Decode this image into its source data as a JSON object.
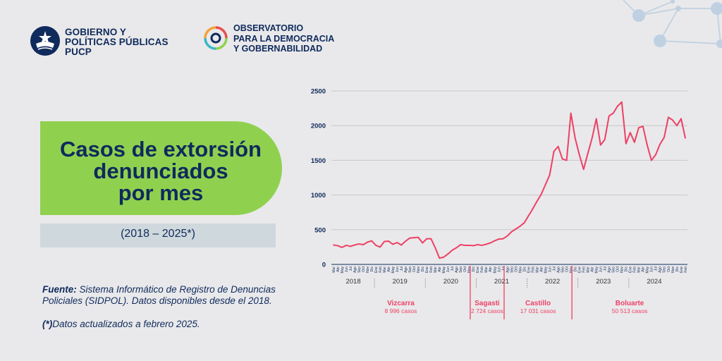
{
  "header": {
    "org1_lines": [
      "GOBIERNO Y",
      "POLÍTICAS PÚBLICAS",
      "PUCP"
    ],
    "org2_lines": [
      "OBSERVATORIO",
      "PARA LA DEMOCRACIA",
      "Y GOBERNABILIDAD"
    ]
  },
  "title": {
    "lines": [
      "Casos de extorsión",
      "denunciados",
      "por mes"
    ],
    "period": "(2018 – 2025*)"
  },
  "footer": {
    "source_label": "Fuente:",
    "source_text": "Sistema Informático de Registro de Denuncias Policiales  (SIDPOL). Datos disponibles desde el 2018.",
    "note_label": "(*)",
    "note_text": "Datos actualizados a febrero 2025."
  },
  "colors": {
    "navy": "#0f2a5c",
    "green": "#8fd14f",
    "line": "#ee4064",
    "period_box": "#cfd8dc"
  },
  "chart_data": {
    "type": "line",
    "title": "Casos de extorsión denunciados por mes",
    "xlabel": "",
    "ylabel": "",
    "ylim": [
      0,
      2500
    ],
    "yticks": [
      "0",
      "500",
      "1000",
      "1500",
      "2000",
      "2500"
    ],
    "month_labels": [
      "Mar",
      "Abr",
      "May",
      "Jun",
      "Jul",
      "Ago",
      "Sep",
      "Oct",
      "Nov",
      "Dic",
      "Ene",
      "Feb",
      "Mar",
      "Abr",
      "May",
      "Jun",
      "Jul",
      "Ago",
      "Sep",
      "Oct",
      "Nov",
      "Dic",
      "Ene",
      "Feb",
      "Mar",
      "Abr",
      "May",
      "Jun",
      "Jul",
      "Ago",
      "Sep",
      "Oct",
      "Nov",
      "Dic",
      "Ene",
      "Feb",
      "Mar",
      "Abr",
      "May",
      "Jun",
      "Jul",
      "Ago",
      "Sep",
      "Oct",
      "Nov",
      "Dic",
      "Ene",
      "Feb",
      "Mar",
      "Abr",
      "May",
      "Jun",
      "Jul",
      "Ago",
      "Sep",
      "Oct",
      "Nov",
      "Dic",
      "Ene",
      "Feb",
      "Mar",
      "Abr",
      "May",
      "Jun",
      "Jul",
      "Ago",
      "Sep",
      "Oct",
      "Nov",
      "Dic",
      "Ene",
      "Feb",
      "Mar",
      "Abr",
      "May",
      "Jun",
      "Jul",
      "Ago",
      "Sep",
      "Oct",
      "Nov",
      "Dic",
      "Ene",
      "Feb"
    ],
    "years": [
      {
        "label": "2018",
        "start": 0,
        "end": 10
      },
      {
        "label": "2019",
        "start": 10,
        "end": 22
      },
      {
        "label": "2020",
        "start": 22,
        "end": 34
      },
      {
        "label": "2021",
        "start": 34,
        "end": 46
      },
      {
        "label": "2022",
        "start": 46,
        "end": 58
      },
      {
        "label": "2023",
        "start": 58,
        "end": 70
      },
      {
        "label": "2024",
        "start": 70,
        "end": 82
      }
    ],
    "series": [
      {
        "name": "Casos de extorsión",
        "values": [
          280,
          270,
          245,
          275,
          260,
          280,
          295,
          285,
          320,
          340,
          275,
          250,
          330,
          335,
          290,
          315,
          280,
          335,
          380,
          385,
          390,
          310,
          370,
          370,
          240,
          90,
          105,
          150,
          205,
          240,
          285,
          275,
          275,
          270,
          285,
          275,
          290,
          310,
          340,
          365,
          370,
          410,
          470,
          510,
          550,
          600,
          700,
          800,
          910,
          1010,
          1150,
          1290,
          1630,
          1700,
          1520,
          1500,
          2180,
          1820,
          1580,
          1370,
          1600,
          1820,
          2100,
          1720,
          1800,
          2140,
          2180,
          2280,
          2340,
          1740,
          1900,
          1760,
          1970,
          1990,
          1720,
          1500,
          1580,
          1730,
          1830,
          2120,
          2080,
          2000,
          2100,
          1820
        ]
      }
    ],
    "periods": [
      {
        "name": "Vizcarra",
        "cases": "8 996 casos",
        "start_index": 0,
        "end_index": 32
      },
      {
        "name": "Sagasti",
        "cases": "2 724 casos",
        "start_index": 32,
        "end_index": 40
      },
      {
        "name": "Castillo",
        "cases": "17 031 casos",
        "start_index": 40,
        "end_index": 56
      },
      {
        "name": "Boluarte",
        "cases": "50 513 casos",
        "start_index": 56,
        "end_index": 83
      }
    ]
  }
}
